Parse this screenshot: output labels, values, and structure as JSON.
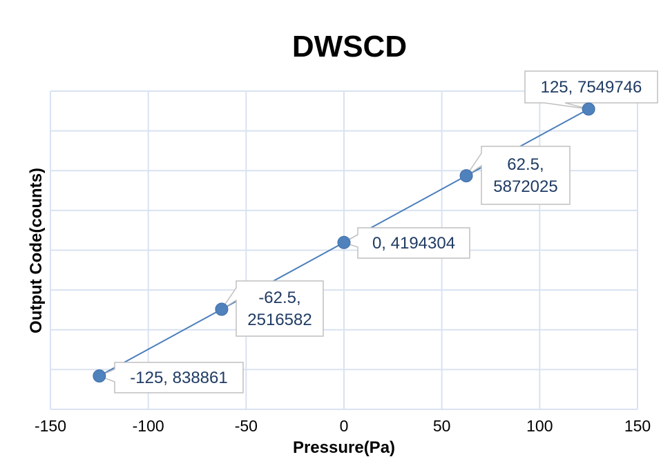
{
  "chart_data": {
    "type": "scatter",
    "title": "DWSCD",
    "xlabel": "Pressure(Pa)",
    "ylabel": "Output Code(counts)",
    "xlim": [
      -150,
      150
    ],
    "ylim": [
      0,
      8000000
    ],
    "x_ticks": [
      -150,
      -100,
      -50,
      0,
      50,
      100,
      150
    ],
    "grid": true,
    "legend": "none",
    "series": [
      {
        "points": [
          {
            "x": -125,
            "y": 838861,
            "label": [
              "-125, 838861"
            ]
          },
          {
            "x": -62.5,
            "y": 2516582,
            "label": [
              "-62.5,",
              "2516582"
            ]
          },
          {
            "x": 0,
            "y": 4194304,
            "label": [
              "0, 4194304"
            ]
          },
          {
            "x": 62.5,
            "y": 5872025,
            "label": [
              "62.5,",
              "5872025"
            ]
          },
          {
            "x": 125,
            "y": 7549746,
            "label": [
              "125, 7549746"
            ]
          }
        ]
      }
    ],
    "colors": {
      "line": "#4a7ebb",
      "marker": "#4f81bd",
      "grid": "#d9e2f1",
      "label_text": "#1f3b63"
    }
  }
}
